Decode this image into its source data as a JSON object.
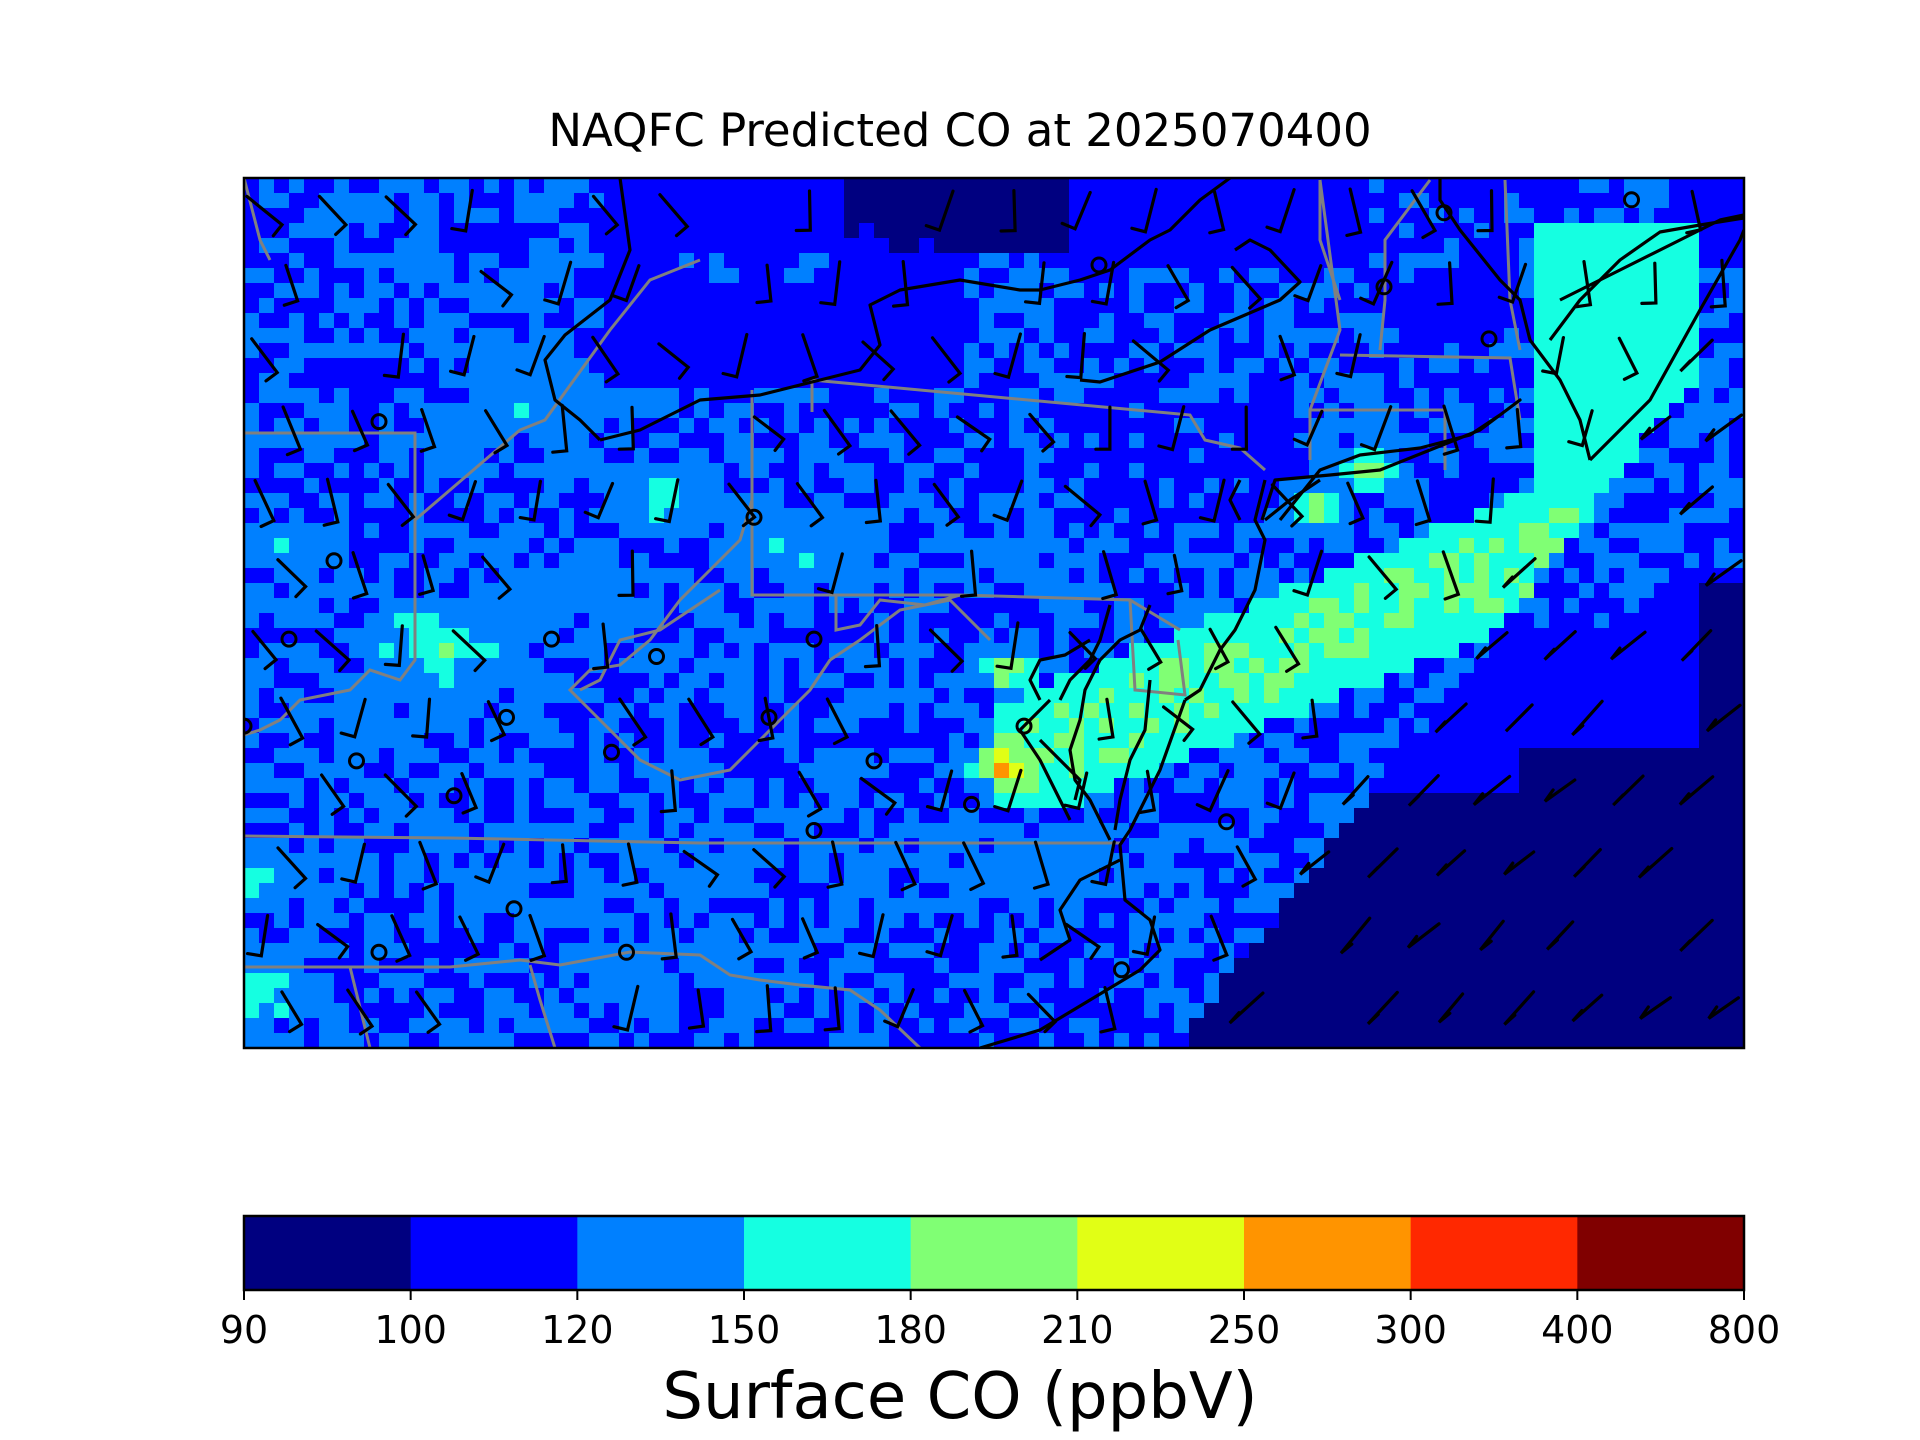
{
  "figure": {
    "title": "NAQFC Predicted CO at 2025070400"
  },
  "colorbar": {
    "label": "Surface CO (ppbV)",
    "ticks": [
      "90",
      "100",
      "120",
      "150",
      "180",
      "210",
      "250",
      "300",
      "400",
      "800"
    ],
    "bins": [
      {
        "range": "90-100",
        "color": "#000080"
      },
      {
        "range": "100-120",
        "color": "#0000ff"
      },
      {
        "range": "120-150",
        "color": "#0080ff"
      },
      {
        "range": "150-180",
        "color": "#15ffe1"
      },
      {
        "range": "180-210",
        "color": "#80ff74"
      },
      {
        "range": "210-250",
        "color": "#e1ff15"
      },
      {
        "range": "250-300",
        "color": "#ff9400"
      },
      {
        "range": "300-400",
        "color": "#ff2800"
      },
      {
        "range": "400-800",
        "color": "#800000"
      }
    ]
  },
  "map": {
    "region": "Eastern United States",
    "layers": [
      "surface CO concentration",
      "wind barbs",
      "state boundaries",
      "coastlines"
    ],
    "colors": {
      "state_borders": "#808080",
      "coastline": "#000000",
      "barbs": "#000000"
    }
  }
}
